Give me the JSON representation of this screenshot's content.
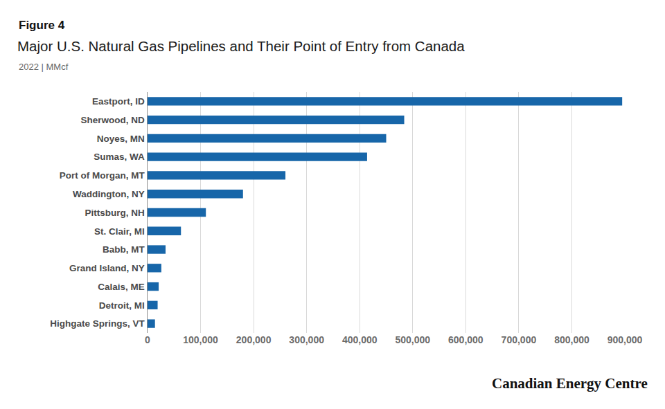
{
  "chart_data": {
    "type": "bar",
    "orientation": "horizontal",
    "title": "Major U.S. Natural Gas Pipelines and Their Point of Entry from Canada",
    "subtitle": "2022 | MMcf",
    "annotations": [
      "Figure 4",
      "Canadian Energy Centre"
    ],
    "categories": [
      "Eastport, ID",
      "Sherwood, ND",
      "Noyes, MN",
      "Sumas, WA",
      "Port of Morgan, MT",
      "Waddington, NY",
      "Pittsburg, NH",
      "St. Clair, MI",
      "Babb, MT",
      "Grand Island, NY",
      "Calais, ME",
      "Detroit, MI",
      "Highgate Springs, VT"
    ],
    "values": [
      895000,
      484000,
      450000,
      414000,
      260000,
      180000,
      110000,
      63000,
      34000,
      26000,
      21000,
      19000,
      14000
    ],
    "color": "#1766a9",
    "xlim": [
      0,
      900000
    ],
    "xticks": [
      0,
      {
        "value": 100000,
        "label": "100,000"
      },
      {
        "value": 200000,
        "label": "200,000"
      },
      {
        "value": 300000,
        "label": "300,000"
      },
      {
        "value": 400000,
        "label": "400,000"
      },
      {
        "value": 500000,
        "label": "500,000"
      },
      {
        "value": 600000,
        "label": "600,000"
      },
      {
        "value": 700000,
        "label": "700,000"
      },
      {
        "value": 800000,
        "label": "800,000"
      },
      {
        "value": 900000,
        "label": "900,000"
      }
    ],
    "grid": true
  }
}
